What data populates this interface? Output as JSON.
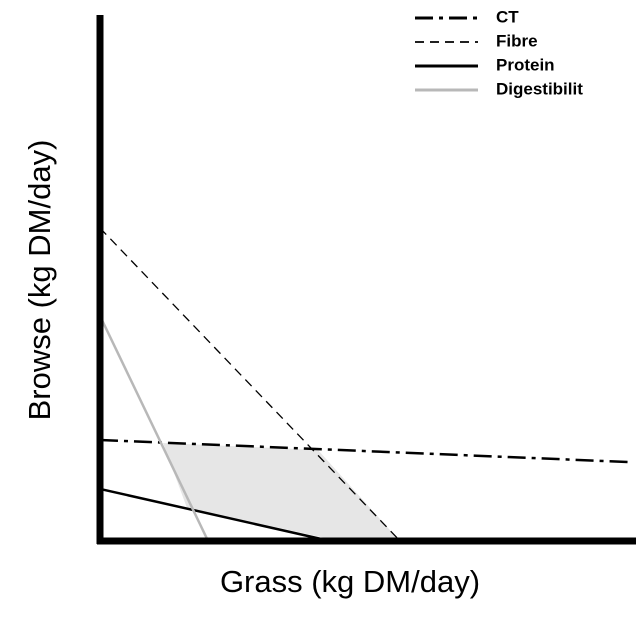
{
  "chart_data": {
    "type": "line",
    "x_label": "Grass (kg DM/day)",
    "y_label": "Browse (kg DM/day)",
    "xlim": [
      0,
      100
    ],
    "ylim": [
      0,
      100
    ],
    "legend": "upper right",
    "series": [
      {
        "name": "CT",
        "color": "#000000",
        "style": "dash-dot",
        "x": [
          0,
          99
        ],
        "values": [
          19.2,
          15.0
        ]
      },
      {
        "name": "Fibre",
        "color": "#000000",
        "style": "dashed",
        "x": [
          0,
          56.1
        ],
        "values": [
          59.5,
          0
        ]
      },
      {
        "name": "Protein",
        "color": "#000000",
        "style": "solid",
        "x": [
          0,
          43
        ],
        "values": [
          9.9,
          0
        ]
      },
      {
        "name": "Digestibilit",
        "color": "#b8b8b8",
        "style": "solid",
        "x": [
          0,
          20.2
        ],
        "values": [
          42.8,
          0
        ]
      }
    ]
  }
}
